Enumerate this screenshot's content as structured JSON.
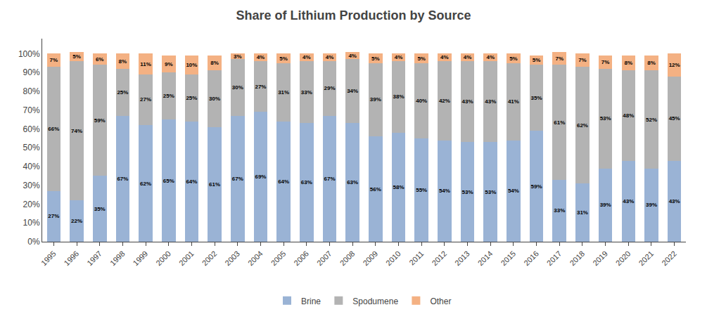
{
  "chart_data": {
    "type": "bar",
    "title": "Share of Lithium Production by Source",
    "x": [
      1995,
      1996,
      1997,
      1998,
      1999,
      2000,
      2001,
      2002,
      2003,
      2004,
      2005,
      2006,
      2007,
      2008,
      2009,
      2010,
      2011,
      2012,
      2013,
      2014,
      2015,
      2016,
      2017,
      2018,
      2019,
      2020,
      2021,
      2022
    ],
    "series": [
      {
        "name": "Brine",
        "color": "#9ab3d5",
        "values": [
          27,
          22,
          35,
          67,
          62,
          65,
          64,
          61,
          67,
          69,
          64,
          63,
          67,
          63,
          56,
          58,
          55,
          54,
          53,
          53,
          54,
          59,
          33,
          31,
          39,
          43,
          39,
          43
        ],
        "value_labels": [
          "27%",
          "22%",
          "35%",
          "67%",
          "62%",
          "65%",
          "64%",
          "61%",
          "67%",
          "69%",
          "64%",
          "63%",
          "67%",
          "63%",
          "56%",
          "58%",
          "55%",
          "54%",
          "53%",
          "53%",
          "54%",
          "59%",
          "33%",
          "31%",
          "39%",
          "43%",
          "39%",
          "43%"
        ]
      },
      {
        "name": "Spodumene",
        "color": "#b3b3b3",
        "values": [
          66,
          74,
          59,
          25,
          27,
          25,
          25,
          30,
          30,
          27,
          31,
          33,
          29,
          34,
          39,
          38,
          40,
          42,
          43,
          43,
          41,
          35,
          61,
          62,
          53,
          48,
          52,
          45
        ],
        "value_labels": [
          "66%",
          "74%",
          "59%",
          "25%",
          "27%",
          "25%",
          "25%",
          "30%",
          "30%",
          "27%",
          "31%",
          "33%",
          "29%",
          "34%",
          "39%",
          "38%",
          "40%",
          "42%",
          "43%",
          "43%",
          "41%",
          "35%",
          "61%",
          "62%",
          "53%",
          "48%",
          "52%",
          "45%"
        ]
      },
      {
        "name": "Other",
        "color": "#f4b183",
        "values": [
          7,
          5,
          6,
          8,
          11,
          9,
          10,
          8,
          3,
          4,
          5,
          4,
          4,
          4,
          5,
          4,
          5,
          4,
          4,
          4,
          5,
          5,
          7,
          7,
          7,
          8,
          8,
          12
        ],
        "value_labels": [
          "7%",
          "5%",
          "6%",
          "8%",
          "11%",
          "9%",
          "10%",
          "8%",
          "3%",
          "4%",
          "5%",
          "4%",
          "4%",
          "4%",
          "5%",
          "4%",
          "5%",
          "4%",
          "4%",
          "4%",
          "5%",
          "5%",
          "7%",
          "7%",
          "7%",
          "8%",
          "8%",
          "12%"
        ]
      }
    ],
    "xlim": [
      1994.5,
      2022.5
    ],
    "xticks": [
      1995,
      1996,
      1997,
      1998,
      1999,
      2000,
      2001,
      2002,
      2003,
      2004,
      2005,
      2006,
      2007,
      2008,
      2009,
      2010,
      2011,
      2012,
      2013,
      2014,
      2015,
      2016,
      2017,
      2018,
      2019,
      2020,
      2021,
      2022
    ],
    "ylim": [
      0,
      108
    ],
    "yticks": [
      {
        "value": 0,
        "label": "0%"
      },
      {
        "value": 10,
        "label": "10%"
      },
      {
        "value": 20,
        "label": "20%"
      },
      {
        "value": 30,
        "label": "30%"
      },
      {
        "value": 40,
        "label": "40%"
      },
      {
        "value": 50,
        "label": "50%"
      },
      {
        "value": 60,
        "label": "60%"
      },
      {
        "value": 70,
        "label": "70%"
      },
      {
        "value": 80,
        "label": "80%"
      },
      {
        "value": 90,
        "label": "90%"
      },
      {
        "value": 100,
        "label": "100%"
      }
    ],
    "grid": false,
    "legend": "bottom",
    "stacked": true,
    "data_labels": true
  }
}
